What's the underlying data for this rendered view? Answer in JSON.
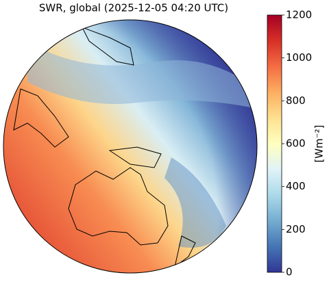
{
  "title": "SWR, global (2025-12-05 04:20 UTC)",
  "colorbar": {
    "label": "[Wm⁻²]",
    "lim": [
      0,
      1200
    ],
    "ticks": [
      0,
      200,
      400,
      600,
      800,
      1000,
      1200
    ],
    "colors": [
      "#313695",
      "#4575b4",
      "#74add1",
      "#abd9e9",
      "#e0f3f8",
      "#ffffbf",
      "#fee090",
      "#fdae61",
      "#f46d43",
      "#d73027",
      "#a50026"
    ]
  }
}
